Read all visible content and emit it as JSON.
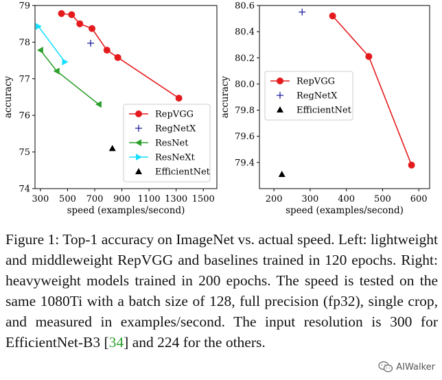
{
  "chart_data": [
    {
      "type": "scatter",
      "xlabel": "speed (examples/second)",
      "ylabel": "accuracy",
      "xlim": [
        260,
        1600
      ],
      "ylim": [
        74,
        79
      ],
      "xticks": [
        300,
        500,
        700,
        900,
        1100,
        1300,
        1500
      ],
      "yticks": [
        74,
        75,
        76,
        77,
        78,
        79
      ],
      "legend_position": "lower-right",
      "series": [
        {
          "name": "RepVGG",
          "color": "#e41a1c",
          "marker": "circle",
          "line": true,
          "points": [
            [
              455,
              78.78
            ],
            [
              530,
              78.75
            ],
            [
              590,
              78.5
            ],
            [
              680,
              78.37
            ],
            [
              790,
              77.78
            ],
            [
              870,
              77.58
            ],
            [
              1320,
              76.47
            ]
          ]
        },
        {
          "name": "RegNetX",
          "color": "#1f1f9f",
          "marker": "plus",
          "line": false,
          "points": [
            [
              670,
              77.97
            ]
          ]
        },
        {
          "name": "ResNet",
          "color": "#2ca02c",
          "marker": "triangle-left",
          "line": true,
          "points": [
            [
              300,
              77.78
            ],
            [
              420,
              77.21
            ],
            [
              730,
              76.3
            ]
          ]
        },
        {
          "name": "ResNeXt",
          "color": "#17e0ff",
          "marker": "triangle-right",
          "line": true,
          "points": [
            [
              285,
              78.43
            ],
            [
              480,
              77.46
            ]
          ]
        },
        {
          "name": "EfficientNet",
          "color": "#000000",
          "marker": "triangle-up",
          "line": false,
          "points": [
            [
              830,
              75.1
            ]
          ]
        }
      ]
    },
    {
      "type": "scatter",
      "xlabel": "speed (examples/second)",
      "ylabel": "accuracy",
      "xlim": [
        160,
        630
      ],
      "ylim": [
        79.2,
        80.6
      ],
      "xticks": [
        200,
        300,
        400,
        500,
        600
      ],
      "yticks": [
        79.4,
        79.6,
        79.8,
        80.0,
        80.2,
        80.4,
        80.6
      ],
      "legend_position": "center-left",
      "series": [
        {
          "name": "RepVGG",
          "color": "#e41a1c",
          "marker": "circle",
          "line": true,
          "points": [
            [
              362,
              80.52
            ],
            [
              462,
              80.21
            ],
            [
              580,
              79.38
            ]
          ]
        },
        {
          "name": "RegNetX",
          "color": "#1f1f9f",
          "marker": "plus",
          "line": false,
          "points": [
            [
              278,
              80.55
            ]
          ]
        },
        {
          "name": "EfficientNet",
          "color": "#000000",
          "marker": "triangle-up",
          "line": false,
          "points": [
            [
              222,
              79.31
            ]
          ]
        }
      ]
    }
  ],
  "caption": {
    "before_ref": "Figure 1: Top-1 accuracy on ImageNet vs. actual speed. Left: lightweight and middleweight RepVGG and baselines trained in 120 epochs. Right: heavyweight models trained in 200 epochs. The speed is tested on the same 1080Ti with a batch size of 128, full precision (fp32), single crop, and measured in examples/second. The input resolution is 300 for EfficientNet-B3 [",
    "ref": "34",
    "after_ref": "] and 224 for the others."
  },
  "watermark": {
    "text": "AIWalker",
    "icon": "wechat-icon"
  }
}
